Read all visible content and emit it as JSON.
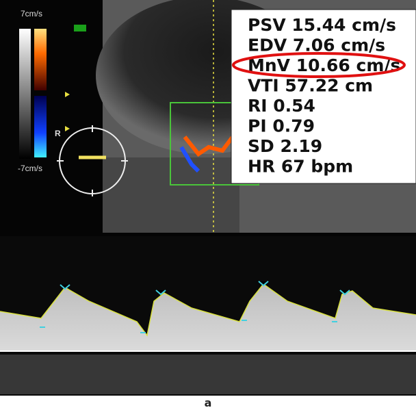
{
  "scale": {
    "max_label": "7cm/s",
    "min_label": "-7cm/s",
    "marker": "R"
  },
  "measurements": [
    "PSV 15.44 cm/s",
    "EDV 7.06 cm/s",
    "MnV 10.66 cm/s",
    "VTI 57.22 cm",
    "RI 0.54",
    "PI 0.79",
    "SD 2.19",
    "HR  67 bpm"
  ],
  "caption": "a"
}
